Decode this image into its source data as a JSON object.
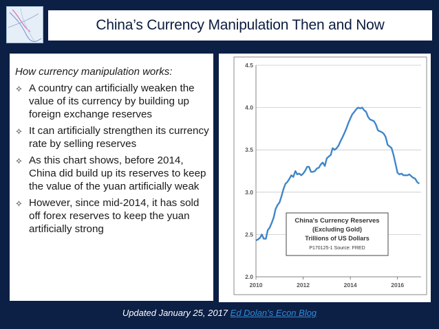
{
  "slide": {
    "title": "China’s Currency Manipulation Then and Now",
    "subhead": "How currency manipulation works:",
    "bullets": [
      {
        "icon": "four-point-star-icon",
        "text": "A country can artificially weaken the value of its currency by building up foreign exchange reserves"
      },
      {
        "icon": "four-point-star-icon",
        "text": "It can artificially strengthen its currency rate by selling reserves"
      },
      {
        "icon": "four-point-star-icon",
        "text": "As this chart shows, before 2014, China did build up its reserves to keep the value of the yuan artificially weak"
      },
      {
        "icon": "four-point-star-icon",
        "text": "However, since mid-2014, it has sold off forex reserves to keep the yuan artificially strong"
      }
    ],
    "footer_text": "Updated January 25, 2017 ",
    "footer_link": "Ed Dolan’s Econ Blog",
    "colors": {
      "background": "#0c1f45",
      "link": "#2e8bd6",
      "series": "#3f86c9"
    }
  },
  "chart_data": {
    "type": "line",
    "title": "China's Currency Reserves",
    "subtitle_lines": [
      "(Excluding Gold)",
      "Trillions of US Dollars"
    ],
    "source": "P170125-1 Source: FRED",
    "xlim": [
      2010,
      2017.0
    ],
    "ylim": [
      2.0,
      4.5
    ],
    "x_ticks": [
      2010,
      2012,
      2014,
      2016
    ],
    "y_ticks": [
      "2.0",
      "2.5",
      "3.0",
      "3.5",
      "4.0",
      "4.5"
    ],
    "grid": "horizontal",
    "series": [
      {
        "x": [
          2010.0,
          2010.08,
          2010.17,
          2010.25,
          2010.33,
          2010.42,
          2010.5,
          2010.58,
          2010.67,
          2010.75,
          2010.83,
          2010.92,
          2011.0,
          2011.08,
          2011.17,
          2011.25,
          2011.33,
          2011.42,
          2011.5,
          2011.58,
          2011.67,
          2011.75,
          2011.83,
          2011.92,
          2012.0,
          2012.08,
          2012.17,
          2012.25,
          2012.33,
          2012.42,
          2012.5,
          2012.58,
          2012.67,
          2012.75,
          2012.83,
          2012.92,
          2013.0,
          2013.08,
          2013.17,
          2013.25,
          2013.33,
          2013.42,
          2013.5,
          2013.58,
          2013.67,
          2013.75,
          2013.83,
          2013.92,
          2014.0,
          2014.08,
          2014.17,
          2014.25,
          2014.33,
          2014.42,
          2014.5,
          2014.58,
          2014.67,
          2014.75,
          2014.83,
          2014.92,
          2015.0,
          2015.08,
          2015.17,
          2015.25,
          2015.33,
          2015.42,
          2015.5,
          2015.58,
          2015.67,
          2015.75,
          2015.83,
          2015.92,
          2016.0,
          2016.08,
          2016.17,
          2016.25,
          2016.33,
          2016.42,
          2016.5,
          2016.58,
          2016.67,
          2016.75,
          2016.83,
          2016.92
        ],
        "y": [
          2.43,
          2.44,
          2.46,
          2.5,
          2.45,
          2.45,
          2.55,
          2.58,
          2.64,
          2.7,
          2.8,
          2.85,
          2.88,
          2.95,
          3.04,
          3.1,
          3.12,
          3.16,
          3.2,
          3.18,
          3.25,
          3.21,
          3.22,
          3.2,
          3.22,
          3.25,
          3.3,
          3.3,
          3.24,
          3.24,
          3.25,
          3.28,
          3.29,
          3.33,
          3.35,
          3.31,
          3.4,
          3.42,
          3.44,
          3.52,
          3.5,
          3.52,
          3.55,
          3.6,
          3.65,
          3.7,
          3.75,
          3.82,
          3.87,
          3.92,
          3.95,
          3.98,
          4.0,
          3.99,
          4.0,
          3.97,
          3.95,
          3.89,
          3.86,
          3.85,
          3.84,
          3.8,
          3.73,
          3.72,
          3.71,
          3.69,
          3.65,
          3.56,
          3.54,
          3.52,
          3.44,
          3.33,
          3.23,
          3.21,
          3.22,
          3.2,
          3.2,
          3.2,
          3.21,
          3.19,
          3.17,
          3.16,
          3.12,
          3.1
        ]
      }
    ]
  }
}
